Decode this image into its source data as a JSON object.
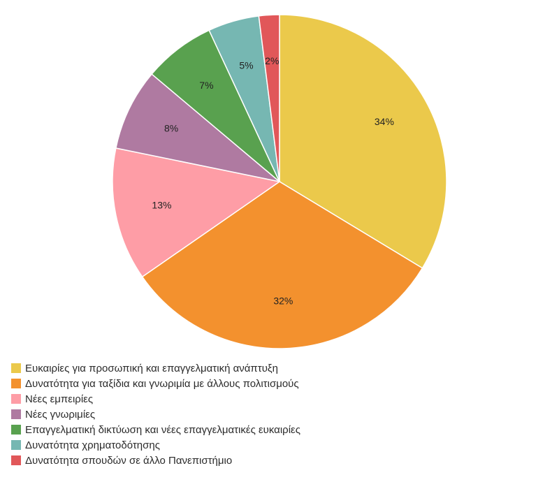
{
  "chart_data": {
    "type": "pie",
    "title": "",
    "start_angle_deg": 0,
    "direction": "clockwise",
    "legend_position": "bottom-left",
    "slices": [
      {
        "label": "Ευκαιρίες για προσωπική και επαγγελματική ανάπτυξη",
        "value": 34,
        "value_label": "34%",
        "color": "#EBC94B"
      },
      {
        "label": "Δυνατότητα για ταξίδια και γνωριμία με άλλους πολιτισμούς",
        "value": 32,
        "value_label": "32%",
        "color": "#F3912E"
      },
      {
        "label": "Νέες εμπειρίες",
        "value": 13,
        "value_label": "13%",
        "color": "#FE9DA6"
      },
      {
        "label": "Νέες γνωριμίες",
        "value": 8,
        "value_label": "8%",
        "color": "#AF7AA1"
      },
      {
        "label": "Επαγγελματική δικτύωση και νέες επαγγελματικές ευκαιρίες",
        "value": 7,
        "value_label": "7%",
        "color": "#59A14F"
      },
      {
        "label": "Δυνατότητα χρηματοδότησης",
        "value": 5,
        "value_label": "5%",
        "color": "#76B7B2"
      },
      {
        "label": "Δυνατότητα σπουδών σε άλλο Πανεπιστήμιο",
        "value": 2,
        "value_label": "2%",
        "color": "#E15759"
      }
    ]
  }
}
